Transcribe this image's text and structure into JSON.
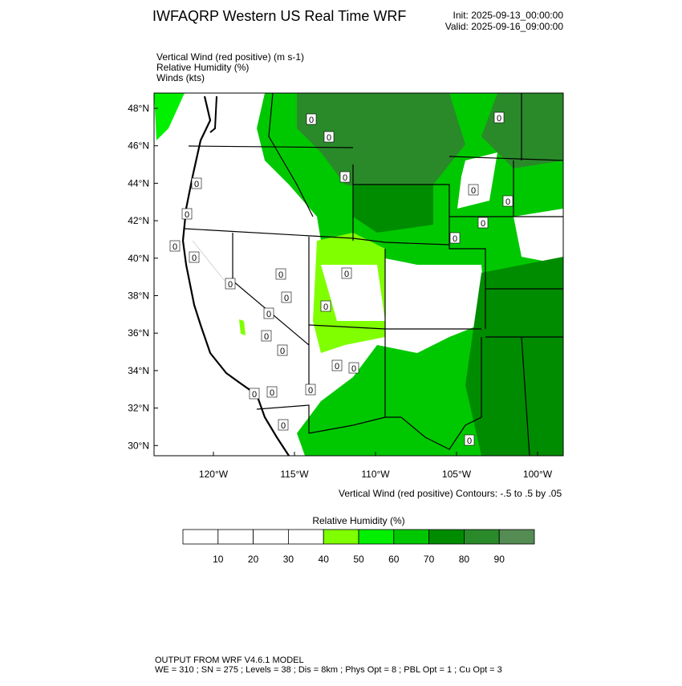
{
  "header": {
    "title": "IWFAQRP Western US Real Time WRF",
    "init": "Init: 2025-09-13_00:00:00",
    "valid": "Valid: 2025-09-16_09:00:00"
  },
  "fields": [
    "Vertical Wind (red positive)   (m s-1)",
    "Relative Humidity   (%)",
    "Winds   (kts)"
  ],
  "map": {
    "lat_labels": [
      "48°N",
      "46°N",
      "44°N",
      "42°N",
      "40°N",
      "38°N",
      "36°N",
      "34°N",
      "32°N",
      "30°N"
    ],
    "lon_labels": [
      "120°W",
      "115°W",
      "110°W",
      "105°W",
      "100°W"
    ],
    "contour_labels": [
      "0",
      "0",
      "0",
      "0",
      "0",
      "0",
      "0",
      "0",
      "0",
      "0",
      "0",
      "0",
      "0",
      "0",
      "0",
      "0",
      "0",
      "0",
      "0",
      "0",
      "0",
      "0",
      "0",
      "0",
      "0",
      "0",
      "0"
    ],
    "contour_info": "Vertical Wind (red positive) Contours: -.5 to .5 by .05"
  },
  "colorbar": {
    "title": "Relative Humidity   (%)",
    "colors": [
      "#ffffff",
      "#ffffff",
      "#ffffff",
      "#ffffff",
      "#80ff00",
      "#00f000",
      "#00c800",
      "#008c00",
      "#2a8a2a",
      "#548c54"
    ],
    "labels": [
      "10",
      "20",
      "30",
      "40",
      "50",
      "60",
      "70",
      "80",
      "90"
    ]
  },
  "footer": [
    "OUTPUT FROM WRF V4.6.1 MODEL",
    "WE = 310 ; SN = 275 ; Levels = 38 ; Dis = 8km ; Phys Opt = 8 ; PBL Opt = 1 ; Cu Opt = 3"
  ]
}
